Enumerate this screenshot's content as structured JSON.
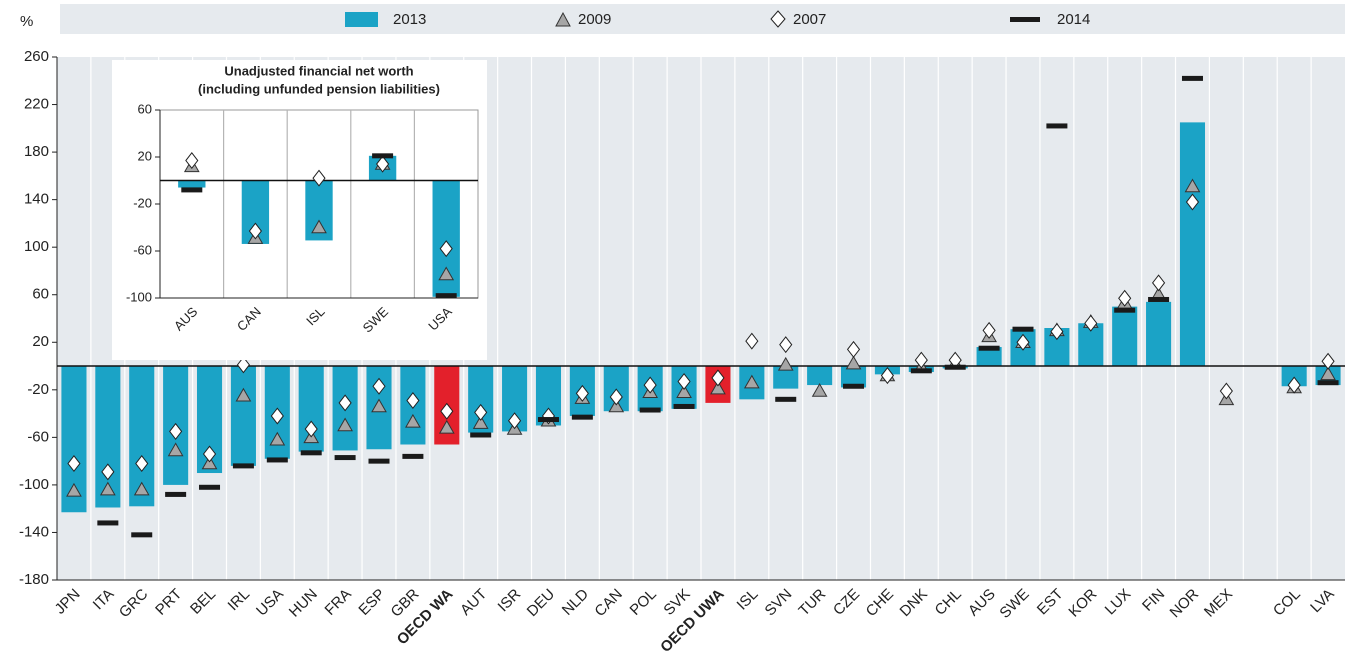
{
  "chart_data": [
    {
      "type": "bar",
      "y_unit": "%",
      "categories": [
        "JPN",
        "ITA",
        "GRC",
        "PRT",
        "BEL",
        "IRL",
        "USA",
        "HUN",
        "FRA",
        "ESP",
        "GBR",
        "OECD WA",
        "AUT",
        "ISR",
        "DEU",
        "NLD",
        "CAN",
        "POL",
        "SVK",
        "OECD UWA",
        "ISL",
        "SVN",
        "TUR",
        "CZE",
        "CHE",
        "DNK",
        "CHL",
        "AUS",
        "SWE",
        "EST",
        "KOR",
        "LUX",
        "FIN",
        "NOR",
        "MEX",
        null,
        "COL",
        "LVA"
      ],
      "series": [
        {
          "name": "2013",
          "marker": "bar",
          "color": "#1ba3c6",
          "colors": [
            "#1ba3c6",
            "#1ba3c6",
            "#1ba3c6",
            "#1ba3c6",
            "#1ba3c6",
            "#1ba3c6",
            "#1ba3c6",
            "#1ba3c6",
            "#1ba3c6",
            "#1ba3c6",
            "#1ba3c6",
            "#e3202b",
            "#1ba3c6",
            "#1ba3c6",
            "#1ba3c6",
            "#1ba3c6",
            "#1ba3c6",
            "#1ba3c6",
            "#1ba3c6",
            "#e3202b",
            "#1ba3c6",
            "#1ba3c6",
            "#1ba3c6",
            "#1ba3c6",
            "#1ba3c6",
            "#1ba3c6",
            "#1ba3c6",
            "#1ba3c6",
            "#1ba3c6",
            "#1ba3c6",
            "#1ba3c6",
            "#1ba3c6",
            "#1ba3c6",
            "#1ba3c6",
            "#1ba3c6",
            "#1ba3c6",
            "#1ba3c6",
            "#1ba3c6"
          ],
          "values": [
            -123,
            -119,
            -118,
            -100,
            -90,
            -84,
            -78,
            -72,
            -71,
            -70,
            -66,
            -66,
            -56,
            -55,
            -50,
            -42,
            -38,
            -38,
            -36,
            -31,
            -28,
            -19,
            -16,
            -18,
            -7,
            -5,
            -2,
            16,
            31,
            32,
            36,
            50,
            54,
            205,
            null,
            null,
            -17,
            -16
          ]
        },
        {
          "name": "2009",
          "marker": "triangle",
          "color": "#a6a6a6",
          "values": [
            -105,
            -104,
            -104,
            -71,
            -82,
            -25,
            -62,
            -60,
            -50,
            -34,
            -47,
            -52,
            -48,
            -53,
            -46,
            -27,
            -34,
            -22,
            -22,
            -19,
            -14,
            1,
            -21,
            2,
            -8,
            -1,
            2,
            25,
            20,
            30,
            37,
            53,
            60,
            151,
            -28,
            null,
            -18,
            -7
          ]
        },
        {
          "name": "2007",
          "marker": "diamond",
          "color": "#ffffff",
          "values": [
            -82,
            -89,
            -82,
            -55,
            -74,
            1,
            -42,
            -53,
            -31,
            -17,
            -29,
            -38,
            -39,
            -46,
            -42,
            -23,
            -26,
            -16,
            -13,
            -10,
            21,
            18,
            null,
            14,
            -8,
            5,
            5,
            30,
            20,
            29,
            36,
            57,
            70,
            138,
            -21,
            null,
            -16,
            4
          ]
        },
        {
          "name": "2014",
          "marker": "dash",
          "color": "#1a1a1a",
          "values": [
            null,
            -132,
            -142,
            -108,
            -102,
            -84,
            -79,
            -73,
            -77,
            -80,
            -76,
            null,
            -58,
            null,
            -45,
            -43,
            null,
            -37,
            -34,
            null,
            null,
            -28,
            null,
            -17,
            null,
            -4,
            -1,
            15,
            31,
            202,
            null,
            47,
            56,
            242,
            null,
            null,
            null,
            -14
          ]
        }
      ],
      "ylim": [
        -180,
        260
      ],
      "yticks": [
        -180,
        -140,
        -100,
        -60,
        -20,
        20,
        60,
        100,
        140,
        180,
        220,
        260
      ]
    },
    {
      "type": "bar",
      "title": "Unadjusted financial net worth",
      "subtitle": "(including unfunded pension liabilities)",
      "categories": [
        "AUS",
        "CAN",
        "ISL",
        "SWE",
        "USA"
      ],
      "series": [
        {
          "name": "2013",
          "marker": "bar",
          "color": "#1ba3c6",
          "values": [
            -6,
            -54,
            -51,
            21,
            -99
          ]
        },
        {
          "name": "2009",
          "marker": "triangle",
          "color": "#a6a6a6",
          "values": [
            12,
            -49,
            -40,
            14,
            -80
          ]
        },
        {
          "name": "2007",
          "marker": "diamond",
          "color": "#ffffff",
          "values": [
            17,
            -43,
            2,
            14,
            -58
          ]
        },
        {
          "name": "2014",
          "marker": "dash",
          "color": "#1a1a1a",
          "values": [
            -8,
            null,
            null,
            21,
            -98
          ]
        }
      ],
      "ylim": [
        -100,
        60
      ],
      "yticks": [
        -100,
        -60,
        -20,
        20,
        60
      ]
    }
  ]
}
